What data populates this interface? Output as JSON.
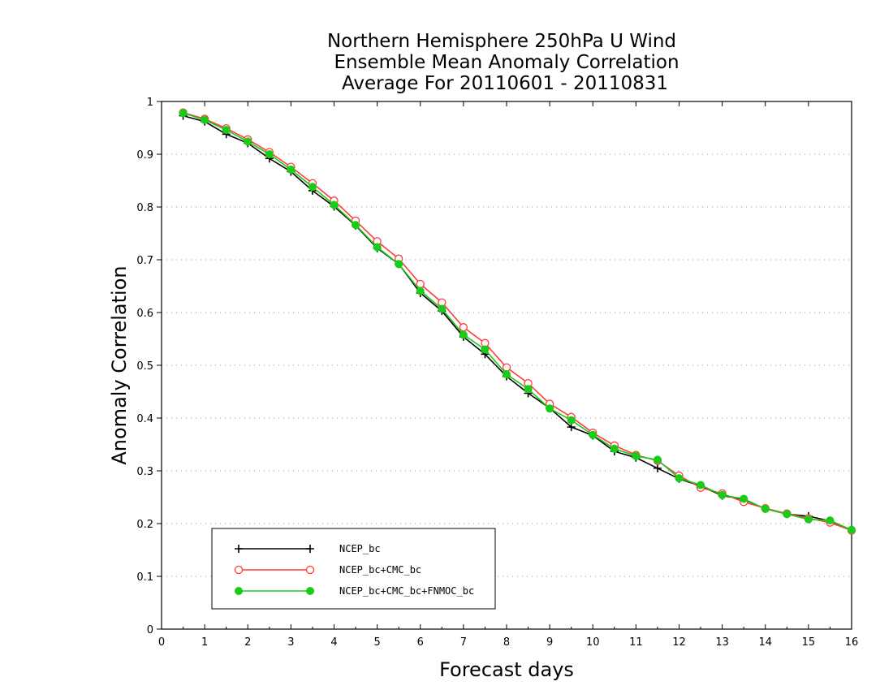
{
  "chart_data": {
    "type": "line",
    "title_lines": [
      "Northern Hemisphere 250hPa U Wind",
      "Ensemble Mean Anomaly Correlation",
      "Average For 20110601 - 20110831"
    ],
    "xlabel": "Forecast days",
    "ylabel": "Anomaly Correlation",
    "xlim": [
      0,
      16
    ],
    "ylim": [
      0,
      1
    ],
    "xticks": [
      0,
      1,
      2,
      3,
      4,
      5,
      6,
      7,
      8,
      9,
      10,
      11,
      12,
      13,
      14,
      15,
      16
    ],
    "yticks": [
      0,
      0.1,
      0.2,
      0.3,
      0.4,
      0.5,
      0.6,
      0.7,
      0.8,
      0.9,
      1
    ],
    "ytick_labels": [
      "0",
      "0.1",
      "0.2",
      "0.3",
      "0.4",
      "0.5",
      "0.6",
      "0.7",
      "0.8",
      "0.9",
      "1"
    ],
    "grid": "horizontal-dotted",
    "legend_position": "bottom-left",
    "x": [
      0.5,
      1,
      1.5,
      2,
      2.5,
      3,
      3.5,
      4,
      4.5,
      5,
      5.5,
      6,
      6.5,
      7,
      7.5,
      8,
      8.5,
      9,
      9.5,
      10,
      10.5,
      11,
      11.5,
      12,
      12.5,
      13,
      13.5,
      14,
      14.5,
      15,
      15.5,
      16
    ],
    "series": [
      {
        "name": "NCEP_bc",
        "color": "#000000",
        "marker": "plus",
        "values": [
          0.973,
          0.962,
          0.938,
          0.921,
          0.892,
          0.867,
          0.831,
          0.801,
          0.765,
          0.722,
          0.692,
          0.637,
          0.603,
          0.554,
          0.521,
          0.479,
          0.447,
          0.419,
          0.383,
          0.367,
          0.337,
          0.325,
          0.305,
          0.285,
          0.271,
          0.253,
          0.246,
          0.228,
          0.218,
          0.214,
          0.205,
          0.187
        ]
      },
      {
        "name": "NCEP_bc+CMC_bc",
        "color": "#ff3b3b",
        "marker": "open-circle",
        "values": [
          0.979,
          0.967,
          0.949,
          0.928,
          0.904,
          0.876,
          0.845,
          0.812,
          0.774,
          0.735,
          0.702,
          0.654,
          0.619,
          0.572,
          0.542,
          0.496,
          0.466,
          0.427,
          0.402,
          0.372,
          0.348,
          0.33,
          0.319,
          0.291,
          0.268,
          0.257,
          0.241,
          0.229,
          0.219,
          0.21,
          0.202,
          0.187
        ]
      },
      {
        "name": "NCEP_bc+CMC_bc+FNMOC_bc",
        "color": "#19cc19",
        "marker": "filled-circle",
        "values": [
          0.978,
          0.965,
          0.946,
          0.924,
          0.9,
          0.871,
          0.838,
          0.804,
          0.766,
          0.724,
          0.692,
          0.641,
          0.607,
          0.558,
          0.53,
          0.483,
          0.455,
          0.418,
          0.396,
          0.368,
          0.342,
          0.328,
          0.321,
          0.286,
          0.273,
          0.254,
          0.247,
          0.228,
          0.218,
          0.208,
          0.206,
          0.188
        ]
      }
    ]
  }
}
